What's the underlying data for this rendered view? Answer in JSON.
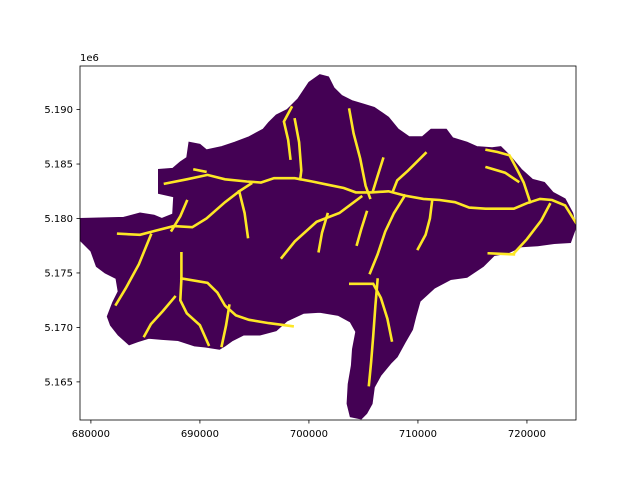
{
  "chart_data": {
    "type": "heatmap",
    "title": "",
    "xlabel": "",
    "ylabel": "",
    "y_offset_label": "1e6",
    "xlim": [
      679000,
      724500
    ],
    "ylim": [
      5161500,
      5194000
    ],
    "x_ticks": [
      680000,
      690000,
      700000,
      710000,
      720000
    ],
    "x_tick_labels": [
      "680000",
      "690000",
      "700000",
      "710000",
      "720000"
    ],
    "y_ticks": [
      5165000,
      5170000,
      5175000,
      5180000,
      5185000,
      5190000
    ],
    "y_tick_labels": [
      "5.165",
      "5.170",
      "5.175",
      "5.180",
      "5.185",
      "5.190"
    ],
    "grid": false,
    "legend": "none",
    "colors": {
      "catchment": "#440154",
      "stream": "#fde725",
      "background": "#ffffff"
    },
    "catchment_outline": [
      [
        679000,
        5180000
      ],
      [
        683000,
        5180100
      ],
      [
        684500,
        5180500
      ],
      [
        685800,
        5180300
      ],
      [
        686500,
        5180000
      ],
      [
        687500,
        5180400
      ],
      [
        687600,
        5182000
      ],
      [
        686200,
        5182300
      ],
      [
        686200,
        5184500
      ],
      [
        687500,
        5184600
      ],
      [
        688200,
        5185200
      ],
      [
        688800,
        5185600
      ],
      [
        689000,
        5187000
      ],
      [
        690000,
        5186800
      ],
      [
        690600,
        5186300
      ],
      [
        692000,
        5186600
      ],
      [
        693200,
        5187000
      ],
      [
        694500,
        5187500
      ],
      [
        695800,
        5188200
      ],
      [
        696300,
        5188800
      ],
      [
        697000,
        5189500
      ],
      [
        698000,
        5190000
      ],
      [
        699000,
        5191000
      ],
      [
        700000,
        5192500
      ],
      [
        701000,
        5193200
      ],
      [
        701800,
        5193000
      ],
      [
        702300,
        5192000
      ],
      [
        703000,
        5191300
      ],
      [
        704000,
        5190800
      ],
      [
        705000,
        5190500
      ],
      [
        706000,
        5190200
      ],
      [
        707300,
        5189300
      ],
      [
        708200,
        5188200
      ],
      [
        709200,
        5187500
      ],
      [
        710400,
        5187500
      ],
      [
        711200,
        5188200
      ],
      [
        712600,
        5188200
      ],
      [
        713200,
        5187400
      ],
      [
        714500,
        5187000
      ],
      [
        715400,
        5186600
      ],
      [
        716800,
        5186500
      ],
      [
        717600,
        5186600
      ],
      [
        718500,
        5185700
      ],
      [
        719500,
        5184500
      ],
      [
        720500,
        5183600
      ],
      [
        721600,
        5183300
      ],
      [
        722400,
        5182400
      ],
      [
        723500,
        5181800
      ],
      [
        724200,
        5180500
      ],
      [
        724500,
        5179200
      ],
      [
        724000,
        5177800
      ],
      [
        722500,
        5177700
      ],
      [
        721000,
        5177500
      ],
      [
        719500,
        5177400
      ],
      [
        718200,
        5176800
      ],
      [
        717000,
        5176600
      ],
      [
        716000,
        5175600
      ],
      [
        714500,
        5174600
      ],
      [
        713000,
        5174400
      ],
      [
        711500,
        5173600
      ],
      [
        710200,
        5172400
      ],
      [
        709800,
        5171000
      ],
      [
        709500,
        5169800
      ],
      [
        708800,
        5168600
      ],
      [
        708100,
        5167300
      ],
      [
        707500,
        5166700
      ],
      [
        706600,
        5165600
      ],
      [
        706000,
        5164500
      ],
      [
        705800,
        5163000
      ],
      [
        705300,
        5162100
      ],
      [
        704800,
        5161600
      ],
      [
        703800,
        5161800
      ],
      [
        703500,
        5163000
      ],
      [
        703600,
        5164800
      ],
      [
        703900,
        5166500
      ],
      [
        704000,
        5168000
      ],
      [
        704300,
        5169600
      ],
      [
        703800,
        5170500
      ],
      [
        702700,
        5171100
      ],
      [
        701000,
        5171400
      ],
      [
        699500,
        5171300
      ],
      [
        698000,
        5170600
      ],
      [
        697000,
        5169700
      ],
      [
        695500,
        5169300
      ],
      [
        694000,
        5169300
      ],
      [
        693000,
        5168800
      ],
      [
        692300,
        5168300
      ],
      [
        691800,
        5168000
      ],
      [
        690500,
        5168200
      ],
      [
        689500,
        5168300
      ],
      [
        688000,
        5168800
      ],
      [
        686500,
        5168900
      ],
      [
        685300,
        5169000
      ],
      [
        684300,
        5168700
      ],
      [
        683500,
        5168400
      ],
      [
        682500,
        5169300
      ],
      [
        681800,
        5170200
      ],
      [
        681500,
        5171000
      ],
      [
        682000,
        5172300
      ],
      [
        682500,
        5173300
      ],
      [
        682300,
        5174500
      ],
      [
        681300,
        5175000
      ],
      [
        680500,
        5175600
      ],
      [
        680000,
        5177000
      ],
      [
        679000,
        5178000
      ],
      [
        679000,
        5180000
      ]
    ],
    "streams": [
      [
        [
          686800,
          5183200
        ],
        [
          688800,
          5183600
        ],
        [
          690700,
          5184000
        ],
        [
          692300,
          5183600
        ],
        [
          694300,
          5183400
        ],
        [
          695600,
          5183300
        ],
        [
          696800,
          5183700
        ],
        [
          698700,
          5183700
        ],
        [
          700300,
          5183400
        ],
        [
          701700,
          5183100
        ],
        [
          703200,
          5182800
        ],
        [
          704300,
          5182400
        ],
        [
          705700,
          5182400
        ],
        [
          707300,
          5182500
        ],
        [
          708800,
          5182100
        ],
        [
          710500,
          5181800
        ],
        [
          712000,
          5181700
        ],
        [
          713400,
          5181500
        ],
        [
          714700,
          5181000
        ],
        [
          716200,
          5180900
        ],
        [
          717300,
          5180900
        ],
        [
          718800,
          5180900
        ],
        [
          720000,
          5181400
        ],
        [
          721200,
          5181800
        ],
        [
          722300,
          5181700
        ],
        [
          723500,
          5181200
        ],
        [
          724500,
          5179600
        ]
      ],
      [
        [
          682500,
          5178600
        ],
        [
          684500,
          5178500
        ],
        [
          686000,
          5178900
        ],
        [
          687600,
          5179300
        ],
        [
          689300,
          5179200
        ],
        [
          690600,
          5180000
        ],
        [
          692300,
          5181500
        ],
        [
          693600,
          5182500
        ],
        [
          694700,
          5183200
        ]
      ],
      [
        [
          698300,
          5185500
        ],
        [
          698100,
          5187200
        ],
        [
          697700,
          5188900
        ],
        [
          698400,
          5190200
        ]
      ],
      [
        [
          698700,
          5189100
        ],
        [
          699100,
          5187000
        ],
        [
          699300,
          5184400
        ],
        [
          699200,
          5183600
        ]
      ],
      [
        [
          703700,
          5190000
        ],
        [
          704100,
          5187800
        ],
        [
          704700,
          5185500
        ],
        [
          705200,
          5183000
        ],
        [
          705600,
          5181900
        ]
      ],
      [
        [
          710700,
          5186000
        ],
        [
          709100,
          5184400
        ],
        [
          708100,
          5183500
        ],
        [
          707700,
          5182500
        ]
      ],
      [
        [
          706800,
          5185500
        ],
        [
          706300,
          5183900
        ],
        [
          705900,
          5182600
        ]
      ],
      [
        [
          716300,
          5186300
        ],
        [
          717300,
          5186100
        ],
        [
          718400,
          5185800
        ],
        [
          719100,
          5184500
        ],
        [
          719700,
          5183300
        ],
        [
          720300,
          5181500
        ]
      ],
      [
        [
          716300,
          5184700
        ],
        [
          718000,
          5184200
        ],
        [
          719200,
          5183400
        ]
      ],
      [
        [
          711300,
          5181600
        ],
        [
          711100,
          5180000
        ],
        [
          710700,
          5178500
        ],
        [
          710000,
          5177200
        ]
      ],
      [
        [
          722100,
          5181300
        ],
        [
          721300,
          5179800
        ],
        [
          720000,
          5178100
        ],
        [
          718800,
          5176800
        ]
      ],
      [
        [
          716500,
          5176800
        ],
        [
          718800,
          5176700
        ]
      ],
      [
        [
          708800,
          5182100
        ],
        [
          707800,
          5180500
        ],
        [
          707000,
          5178800
        ],
        [
          706300,
          5176700
        ],
        [
          705600,
          5175000
        ]
      ],
      [
        [
          704800,
          5182000
        ],
        [
          702800,
          5180500
        ],
        [
          700700,
          5179700
        ],
        [
          698700,
          5177900
        ],
        [
          697500,
          5176400
        ]
      ],
      [
        [
          701700,
          5180400
        ],
        [
          701200,
          5178700
        ],
        [
          700900,
          5177000
        ]
      ],
      [
        [
          705300,
          5180600
        ],
        [
          704800,
          5179000
        ],
        [
          704400,
          5177600
        ]
      ],
      [
        [
          682300,
          5172100
        ],
        [
          683200,
          5173600
        ],
        [
          684400,
          5175800
        ],
        [
          685500,
          5178500
        ]
      ],
      [
        [
          688300,
          5176800
        ],
        [
          688300,
          5174400
        ],
        [
          688200,
          5172500
        ],
        [
          688800,
          5171300
        ],
        [
          690000,
          5170200
        ],
        [
          690800,
          5168400
        ]
      ],
      [
        [
          688300,
          5174500
        ],
        [
          690700,
          5174100
        ],
        [
          691600,
          5173200
        ],
        [
          692300,
          5172000
        ],
        [
          693300,
          5171100
        ],
        [
          694500,
          5170700
        ],
        [
          696300,
          5170400
        ],
        [
          698500,
          5170100
        ]
      ],
      [
        [
          687700,
          5172800
        ],
        [
          686600,
          5171500
        ],
        [
          685500,
          5170300
        ],
        [
          684900,
          5169200
        ]
      ],
      [
        [
          692700,
          5172000
        ],
        [
          692400,
          5170200
        ],
        [
          692000,
          5168300
        ]
      ],
      [
        [
          688800,
          5181600
        ],
        [
          688200,
          5180200
        ],
        [
          687400,
          5178900
        ]
      ],
      [
        [
          693600,
          5182500
        ],
        [
          694100,
          5180500
        ],
        [
          694400,
          5178300
        ]
      ],
      [
        [
          689500,
          5184500
        ],
        [
          690500,
          5184300
        ]
      ],
      [
        [
          703800,
          5174000
        ],
        [
          705900,
          5174000
        ],
        [
          706600,
          5172700
        ],
        [
          707200,
          5170800
        ],
        [
          707600,
          5168800
        ]
      ],
      [
        [
          706300,
          5174400
        ],
        [
          706100,
          5172000
        ],
        [
          705900,
          5169200
        ],
        [
          705700,
          5166800
        ],
        [
          705500,
          5164700
        ]
      ]
    ]
  }
}
